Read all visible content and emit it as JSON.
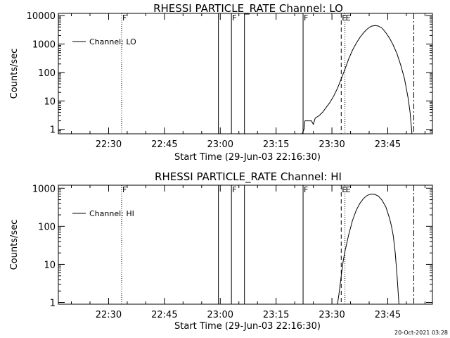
{
  "chart_data": [
    {
      "type": "line",
      "title": "RHESSI PARTICLE_RATE Channel: LO",
      "xlabel": "Start Time (29-Jun-03 22:16:30)",
      "ylabel": "Counts/sec",
      "y_scale": "log",
      "xlim": [
        "22:16:30",
        "23:57:00"
      ],
      "ylim": [
        0.7,
        12000
      ],
      "x_ticks": [
        "22:30",
        "22:45",
        "23:00",
        "23:15",
        "23:30",
        "23:45"
      ],
      "y_ticks": [
        {
          "value": 1,
          "label": "1"
        },
        {
          "value": 10,
          "label": "10"
        },
        {
          "value": 100,
          "label": "100"
        },
        {
          "value": 1000,
          "label": "1000"
        },
        {
          "value": 10000,
          "label": "10000"
        }
      ],
      "legend": {
        "position": "top-left",
        "entries": [
          "Channel: LO"
        ]
      },
      "grid": false,
      "series": [
        {
          "name": "Channel: LO",
          "x": [
            "23:22:00",
            "23:22:30",
            "23:22:45",
            "23:23:30",
            "23:24:00",
            "23:24:30",
            "23:25:00",
            "23:25:30",
            "23:26:30",
            "23:27:30",
            "23:28:30",
            "23:29:30",
            "23:30:30",
            "23:31:30",
            "23:32:30",
            "23:33:30",
            "23:34:30",
            "23:35:30",
            "23:36:30",
            "23:37:30",
            "23:38:30",
            "23:39:30",
            "23:40:30",
            "23:41:30",
            "23:42:30",
            "23:43:30",
            "23:44:30",
            "23:45:30",
            "23:46:30",
            "23:47:30",
            "23:48:30",
            "23:49:30",
            "23:50:30",
            "23:51:00",
            "23:51:30"
          ],
          "y": [
            0.7,
            1,
            2,
            2,
            2,
            2,
            1.5,
            2.5,
            3,
            4,
            6,
            9,
            15,
            28,
            60,
            130,
            300,
            600,
            1050,
            1700,
            2500,
            3400,
            4200,
            4500,
            4300,
            3600,
            2500,
            1600,
            900,
            450,
            180,
            60,
            12,
            4,
            0.7
          ]
        }
      ],
      "vertical_markers": [
        {
          "style": "dotted",
          "x": "22:33:30",
          "label": "F"
        },
        {
          "style": "solid",
          "x": "22:59:30",
          "label": ""
        },
        {
          "style": "solid",
          "x": "23:03:00",
          "label": "F"
        },
        {
          "style": "solid",
          "x": "23:06:30",
          "label": ""
        },
        {
          "style": "solid",
          "x": "23:22:15",
          "label": "F"
        },
        {
          "style": "dashed",
          "x": "23:32:30",
          "label": "E"
        },
        {
          "style": "dotted",
          "x": "23:33:30",
          "label": "E"
        },
        {
          "style": "dash-dot",
          "x": "23:52:00",
          "label": ""
        }
      ]
    },
    {
      "type": "line",
      "title": "RHESSI PARTICLE_RATE Channel: HI",
      "xlabel": "Start Time (29-Jun-03 22:16:30)",
      "ylabel": "Counts/sec",
      "y_scale": "log",
      "xlim": [
        "22:16:30",
        "23:57:00"
      ],
      "ylim": [
        0.9,
        1200
      ],
      "x_ticks": [
        "22:30",
        "22:45",
        "23:00",
        "23:15",
        "23:30",
        "23:45"
      ],
      "y_ticks": [
        {
          "value": 1,
          "label": "1"
        },
        {
          "value": 10,
          "label": "10"
        },
        {
          "value": 100,
          "label": "100"
        },
        {
          "value": 1000,
          "label": "1000"
        }
      ],
      "legend": {
        "position": "top-left",
        "entries": [
          "Channel: HI"
        ]
      },
      "grid": false,
      "series": [
        {
          "name": "Channel: HI",
          "x": [
            "23:31:30",
            "23:32:00",
            "23:32:30",
            "23:33:00",
            "23:33:30",
            "23:34:30",
            "23:35:30",
            "23:36:30",
            "23:37:30",
            "23:38:30",
            "23:39:30",
            "23:40:30",
            "23:41:30",
            "23:42:30",
            "23:43:30",
            "23:44:30",
            "23:45:30",
            "23:46:00",
            "23:46:30",
            "23:47:00",
            "23:47:30",
            "23:48:00"
          ],
          "y": [
            0.9,
            2,
            5,
            12,
            22,
            60,
            140,
            260,
            400,
            540,
            650,
            700,
            690,
            620,
            480,
            320,
            160,
            100,
            55,
            20,
            5,
            0.9
          ]
        }
      ],
      "vertical_markers": [
        {
          "style": "dotted",
          "x": "22:33:30",
          "label": "F"
        },
        {
          "style": "solid",
          "x": "22:59:30",
          "label": ""
        },
        {
          "style": "solid",
          "x": "23:03:00",
          "label": "F"
        },
        {
          "style": "solid",
          "x": "23:06:30",
          "label": ""
        },
        {
          "style": "solid",
          "x": "23:22:15",
          "label": "F"
        },
        {
          "style": "dashed",
          "x": "23:32:30",
          "label": "E"
        },
        {
          "style": "dotted",
          "x": "23:33:30",
          "label": "E"
        },
        {
          "style": "dash-dot",
          "x": "23:52:00",
          "label": ""
        }
      ]
    }
  ],
  "footer": {
    "timestamp": "20-Oct-2021 03:28"
  }
}
